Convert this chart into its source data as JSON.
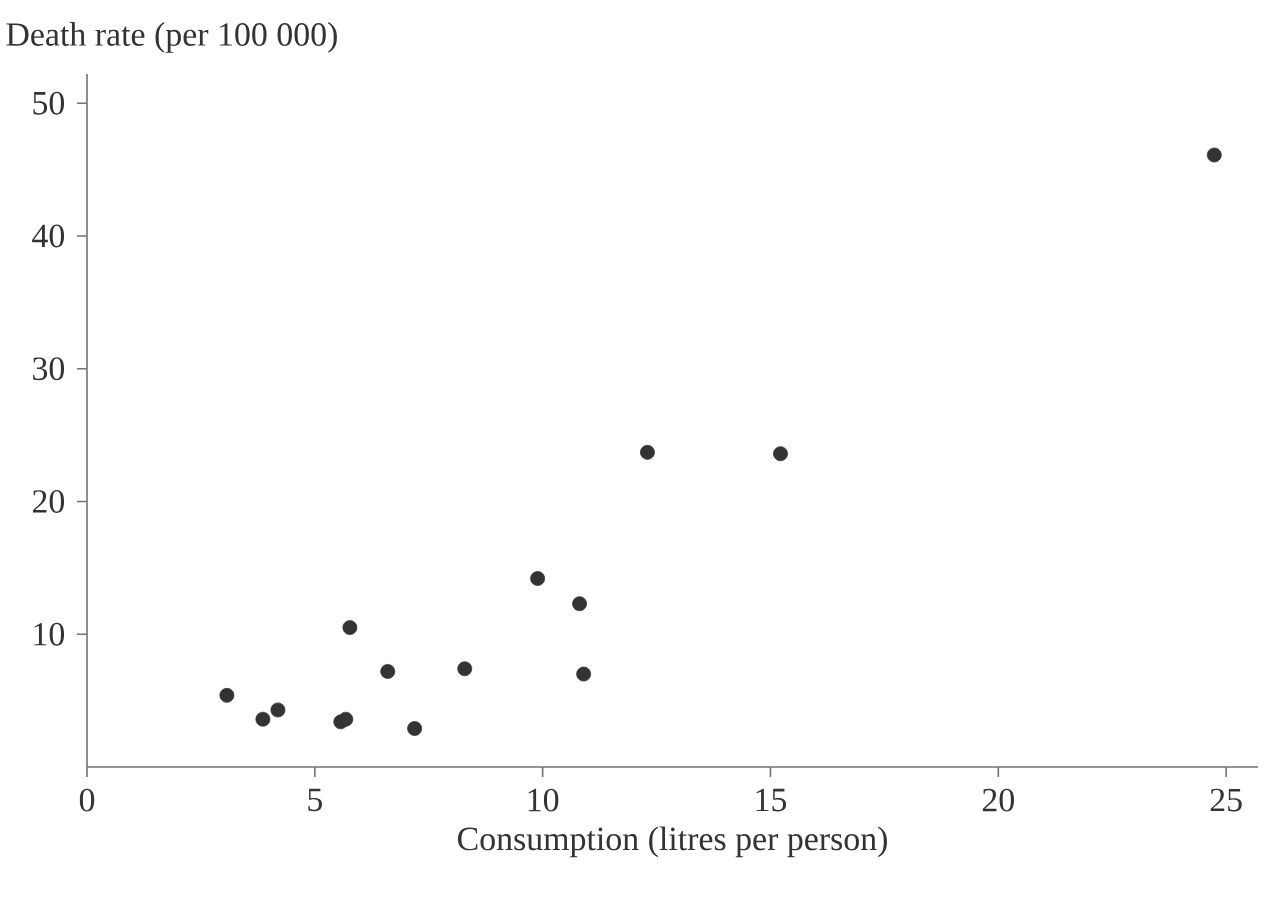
{
  "chart_data": {
    "type": "scatter",
    "xlabel": "Consumption (litres per person)",
    "ylabel": "Death rate (per 100 000)",
    "x": [
      3.07,
      3.86,
      4.19,
      5.57,
      5.68,
      5.77,
      6.6,
      7.19,
      8.29,
      9.89,
      10.81,
      10.9,
      12.3,
      15.22,
      24.74
    ],
    "values": [
      5.4,
      3.6,
      4.3,
      3.4,
      3.6,
      10.5,
      7.2,
      2.9,
      7.4,
      14.2,
      12.3,
      7.0,
      23.7,
      23.6,
      46.1
    ],
    "color": "#333333",
    "marker": "circle",
    "xlim": [
      0,
      25.7
    ],
    "ylim": [
      0,
      52.2
    ],
    "xticks": [
      0,
      5,
      10,
      15,
      20,
      25
    ],
    "yticks": [
      10,
      20,
      30,
      40,
      50
    ]
  }
}
